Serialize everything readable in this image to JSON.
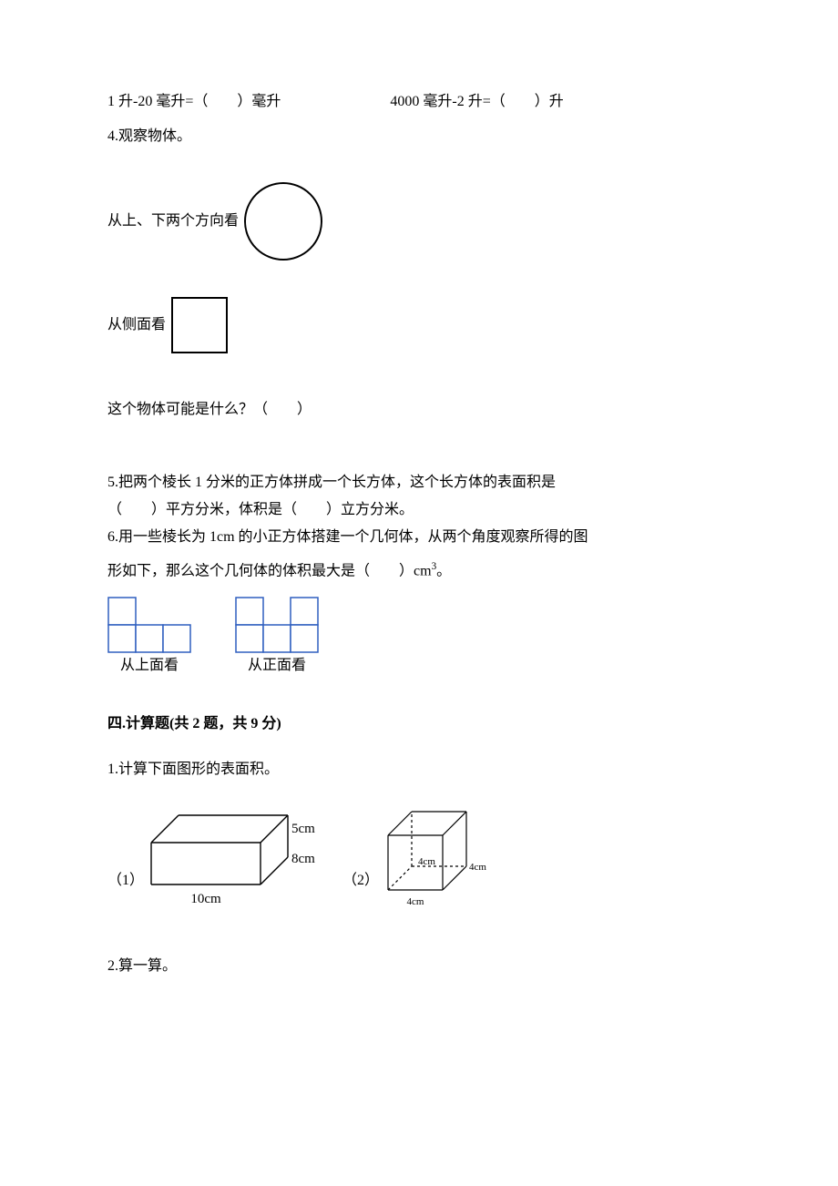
{
  "q3_line1_left": "1 升-20 毫升=（  ）毫升",
  "q3_line1_right": "4000 毫升-2 升=（  ）升",
  "q4_title": "4.观察物体。",
  "q4_updown_label": "从上、下两个方向看",
  "q4_side_label": "从侧面看",
  "q4_question": "这个物体可能是什么？（  ）",
  "q5_a": "5.把两个棱长 1 分米的正方体拼成一个长方体，这个长方体的表面积是",
  "q5_b": "（  ）平方分米，体积是（  ）立方分米。",
  "q6_a": "6.用一些棱长为 1cm 的小正方体搭建一个几何体，从两个角度观察所得的图",
  "q6_b_prefix": "形如下，那么这个几何体的体积最大是（  ）cm",
  "q6_b_exp": "3",
  "q6_b_suffix": "。",
  "views": {
    "top_label": "从上面看",
    "front_label": "从正面看",
    "cell": 30,
    "stroke": "#2f5fbf",
    "top_cells": [
      [
        0,
        0
      ],
      [
        0,
        1
      ],
      [
        1,
        1
      ],
      [
        2,
        1
      ]
    ],
    "front_cells": [
      [
        0,
        0
      ],
      [
        2,
        0
      ],
      [
        0,
        1
      ],
      [
        1,
        1
      ],
      [
        2,
        1
      ]
    ]
  },
  "section4_heading": "四.计算题(共 2 题，共 9 分)",
  "s4_q1": "1.计算下面图形的表面积。",
  "s4_q1_fig1_num": "（1）",
  "s4_q1_fig2_num": "（2）",
  "cuboid": {
    "w": 120,
    "h": 46,
    "d": 30,
    "labels": {
      "w": "10cm",
      "h": "5cm",
      "d": "8cm"
    },
    "label_font": 15,
    "stroke": "#000000"
  },
  "cube": {
    "s": 60,
    "d": 26,
    "labels": {
      "a": "4cm",
      "b": "4cm",
      "c": "4cm"
    },
    "label_font": 11,
    "stroke": "#000000"
  },
  "s4_q2": "2.算一算。",
  "circle": {
    "r": 42,
    "stroke": "#000000",
    "sw": 2
  },
  "square": {
    "s": 60,
    "stroke": "#000000",
    "sw": 2
  },
  "colors": {
    "text": "#000000",
    "bg": "#ffffff"
  }
}
